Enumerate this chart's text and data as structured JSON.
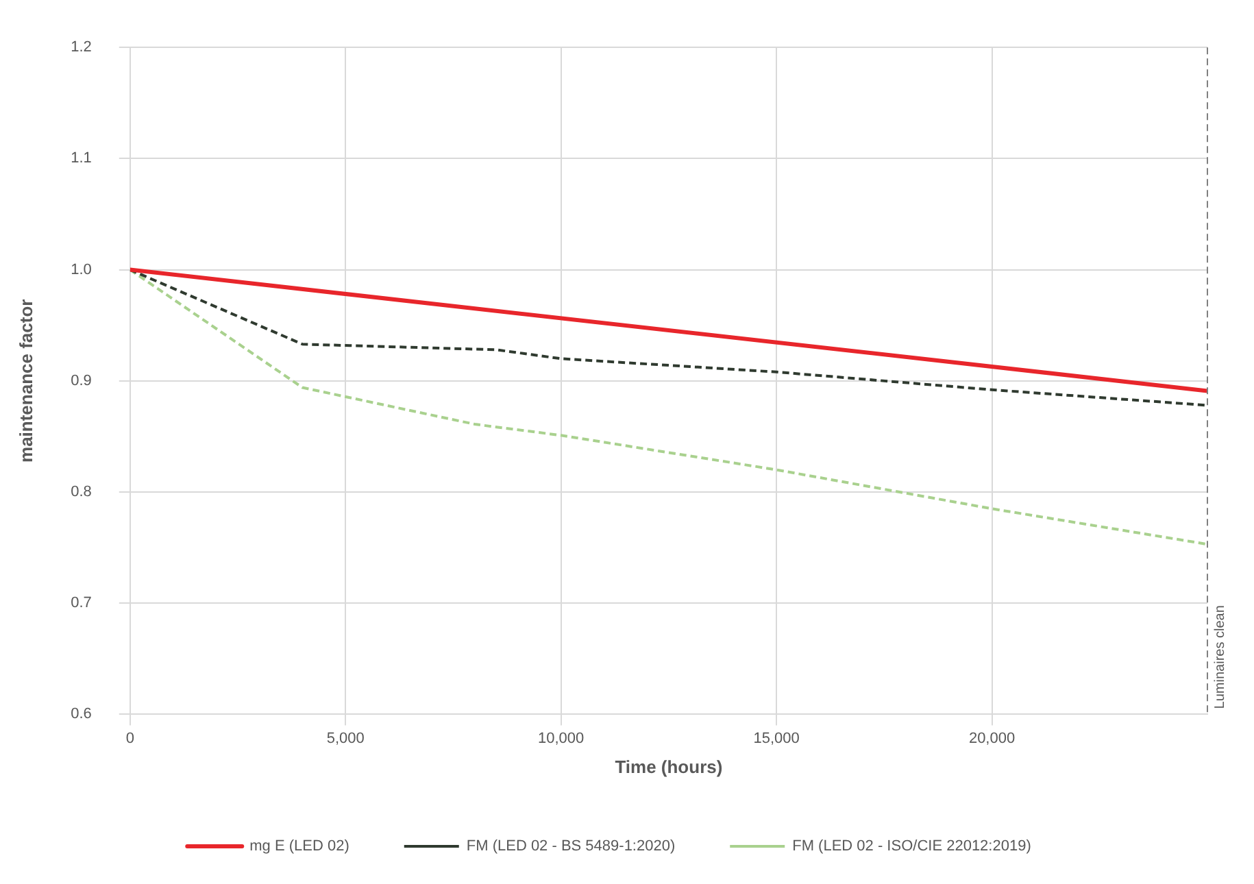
{
  "chart_data": {
    "type": "line",
    "xlabel": "Time (hours)",
    "ylabel": "maintenance factor",
    "xlim": [
      0,
      25000
    ],
    "xticks": [
      0,
      {
        "value": 5000,
        "label": "5,000"
      },
      {
        "value": 10000,
        "label": "10,000"
      },
      {
        "value": 15000,
        "label": "15,000"
      },
      {
        "value": 20000,
        "label": "20,000"
      }
    ],
    "ylim": [
      0.6,
      1.2
    ],
    "yticks": [
      {
        "value": 0.6,
        "label": "0.6"
      },
      {
        "value": 0.7,
        "label": "0.7"
      },
      {
        "value": 0.8,
        "label": "0.8"
      },
      {
        "value": 0.9,
        "label": "0.9"
      },
      {
        "value": 1,
        "label": "1.0"
      },
      {
        "value": 1.1,
        "label": "1.1"
      },
      {
        "value": 1.2,
        "label": "1.2"
      }
    ],
    "grid": true,
    "legend": "bottom",
    "marker": "none",
    "ref_lines": [
      {
        "axis": "x",
        "value": 25000,
        "label": "Luminaires clean",
        "color": "#808080",
        "line_style": "dashed"
      }
    ],
    "series": [
      {
        "name": "mg E (LED 02)",
        "color": "#e8262b",
        "line_style": "solid",
        "x": [
          0,
          25000
        ],
        "values": [
          1.0,
          0.891
        ]
      },
      {
        "name": "FM (LED 02 - BS 5489-1:2020)",
        "color": "#2f3a2f",
        "line_style": "dashed",
        "x": [
          0,
          4000,
          8500,
          10000,
          15000,
          20000,
          25000
        ],
        "values": [
          1.0,
          0.933,
          0.928,
          0.92,
          0.908,
          0.892,
          0.878
        ]
      },
      {
        "name": "FM (LED 02 - ISO/CIE 22012:2019)",
        "color": "#a9d18e",
        "line_style": "dashed",
        "x": [
          0,
          4000,
          8000,
          10000,
          15000,
          20000,
          25000
        ],
        "values": [
          1.0,
          0.894,
          0.861,
          0.851,
          0.82,
          0.785,
          0.753
        ]
      }
    ]
  }
}
